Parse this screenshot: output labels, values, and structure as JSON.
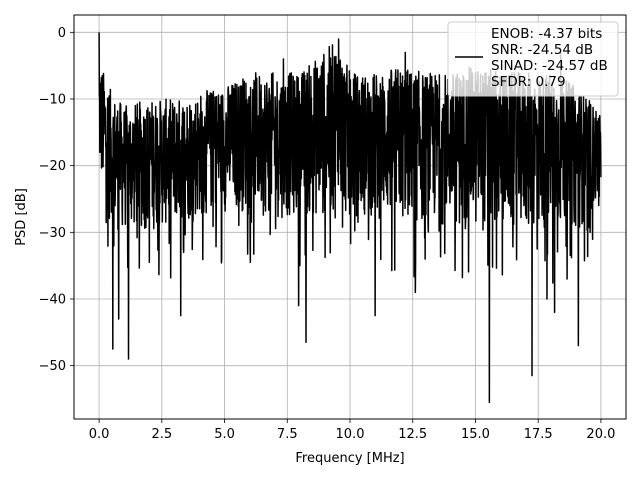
{
  "chart_data": {
    "type": "line",
    "xlabel": "Frequency [MHz]",
    "ylabel": "PSD [dB]",
    "xlim": [
      -1.0,
      21.0
    ],
    "ylim": [
      -58.0,
      2.6
    ],
    "x_ticks": [
      0.0,
      2.5,
      5.0,
      7.5,
      10.0,
      12.5,
      15.0,
      17.5,
      20.0
    ],
    "x_tick_labels": [
      "0.0",
      "2.5",
      "5.0",
      "7.5",
      "10.0",
      "12.5",
      "15.0",
      "17.5",
      "20.0"
    ],
    "y_ticks": [
      0,
      -10,
      -20,
      -30,
      -40,
      -50
    ],
    "y_tick_labels": [
      "0",
      "−10",
      "−20",
      "−30",
      "−40",
      "−50"
    ],
    "grid": true,
    "legend_position": "top-right",
    "legend_entries": [
      "ENOB: -4.37 bits",
      "SNR: -24.54 dB",
      "SINAD: -24.57 dB",
      "SFDR: 0.79"
    ],
    "series_color": "#000000",
    "series": [
      {
        "x_range": [
          0.0,
          20.0
        ],
        "points": 2048,
        "upper_envelope": [
          [
            0.0,
            -4
          ],
          [
            0.5,
            -9
          ],
          [
            1.0,
            -11
          ],
          [
            2.0,
            -10
          ],
          [
            3.0,
            -10
          ],
          [
            4.0,
            -9
          ],
          [
            5.0,
            -8
          ],
          [
            6.0,
            -6
          ],
          [
            7.0,
            -6
          ],
          [
            8.0,
            -6
          ],
          [
            9.5,
            -1
          ],
          [
            10.0,
            -6
          ],
          [
            11.0,
            -6
          ],
          [
            12.0,
            -5
          ],
          [
            13.0,
            -6
          ],
          [
            14.0,
            -6
          ],
          [
            15.0,
            -5
          ],
          [
            16.0,
            -6
          ],
          [
            17.0,
            -6
          ],
          [
            18.0,
            -6
          ],
          [
            19.0,
            -8
          ],
          [
            20.0,
            -12
          ]
        ],
        "lower_envelope": [
          [
            0.0,
            -22
          ],
          [
            0.5,
            -30
          ],
          [
            1.0,
            -30
          ],
          [
            2.0,
            -30
          ],
          [
            3.0,
            -29
          ],
          [
            4.0,
            -28
          ],
          [
            5.0,
            -27
          ],
          [
            6.0,
            -27
          ],
          [
            7.0,
            -28
          ],
          [
            8.0,
            -28
          ],
          [
            9.0,
            -28
          ],
          [
            10.0,
            -28
          ],
          [
            11.0,
            -28
          ],
          [
            12.0,
            -29
          ],
          [
            13.0,
            -29
          ],
          [
            14.0,
            -29
          ],
          [
            15.0,
            -30
          ],
          [
            16.0,
            -30
          ],
          [
            17.0,
            -30
          ],
          [
            18.0,
            -30
          ],
          [
            19.0,
            -30
          ],
          [
            20.0,
            -26
          ]
        ],
        "peaks": [
          [
            0.0,
            0.0
          ],
          [
            9.55,
            -1.0
          ],
          [
            7.35,
            -4.0
          ],
          [
            12.2,
            -3.0
          ],
          [
            18.4,
            -3.0
          ]
        ],
        "dips": [
          [
            0.55,
            -47.5
          ],
          [
            0.78,
            -43.0
          ],
          [
            1.17,
            -49.0
          ],
          [
            3.25,
            -42.5
          ],
          [
            7.95,
            -41.0
          ],
          [
            8.25,
            -46.5
          ],
          [
            11.0,
            -42.5
          ],
          [
            12.6,
            -39.0
          ],
          [
            15.55,
            -55.5
          ],
          [
            17.25,
            -51.5
          ],
          [
            17.85,
            -40.0
          ],
          [
            18.15,
            -42.0
          ],
          [
            19.1,
            -47.0
          ]
        ]
      }
    ]
  }
}
